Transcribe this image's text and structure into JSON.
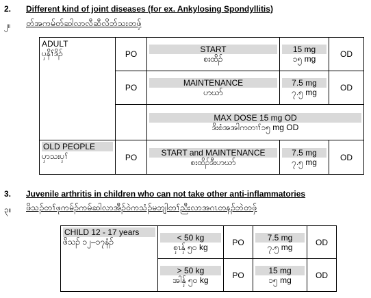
{
  "section2": {
    "number": "2.",
    "title": "Different kind of joint diseases (for ex. Ankylosing Spondyllitis)",
    "my_number": "၂။",
    "my_title": "တ်အကမ်တ်ဆါလာလီဆီလိဘ်သးတဖှ်",
    "rows": {
      "adult_en": "ADULT",
      "adult_my": "ပှနိၢ်ဒိၣ်",
      "po": "PO",
      "start_en": "START",
      "start_my": "စးထိၣ်",
      "start_mg": "15 mg",
      "start_mg_my": "၁၅ mg",
      "od": "OD",
      "maint_en": "MAINTENANCE",
      "maint_my": "ပာဃာ်",
      "maint_mg": "7.5 mg",
      "maint_mg_my": "၇.၅ mg",
      "max_en": "MAX DOSE 15 mg OD",
      "max_my": "ဒိးစံအအါကတၢၢ်၁၅ mg OD",
      "old_en": "OLD PEOPLE",
      "old_my": "ပှာသးပှၢ်",
      "old_dose_en": "START and MAINTENANCE",
      "old_dose_my": "စးထိၣ်ဒီးပာဃာ်",
      "old_mg": "7.5 mg",
      "old_mg_my": "၇.၅ mg"
    }
  },
  "section3": {
    "number": "3.",
    "title": "Juvenile arthritis in children who can not take other anti-inflammatories",
    "my_number": "၃။",
    "my_title": "ဖိသၣ်တၢ်ဖုကမ်ၣ်ကမ်ဆါလာအီၣ်ဝဲကသံၣ်မဘျါတၢ်ညီးလာအဂၤတနၣ်ဘဲတဖှ်",
    "rows": {
      "child_en": "CHILD 12 - 17 years",
      "child_my": "ဖိသၣ် ၁၂–၁၇နံၣ်",
      "lt_en": "< 50 kg",
      "lt_my": "စှၤနှ် ၅၀ kg",
      "po": "PO",
      "lt_mg": "7.5 mg",
      "lt_mg_my": "၇.၅ mg",
      "od": "OD",
      "gt_en": "> 50 kg",
      "gt_my": "အါနှ် ၅၀ kg",
      "gt_mg": "15 mg",
      "gt_mg_my": "၁၅ mg"
    }
  }
}
